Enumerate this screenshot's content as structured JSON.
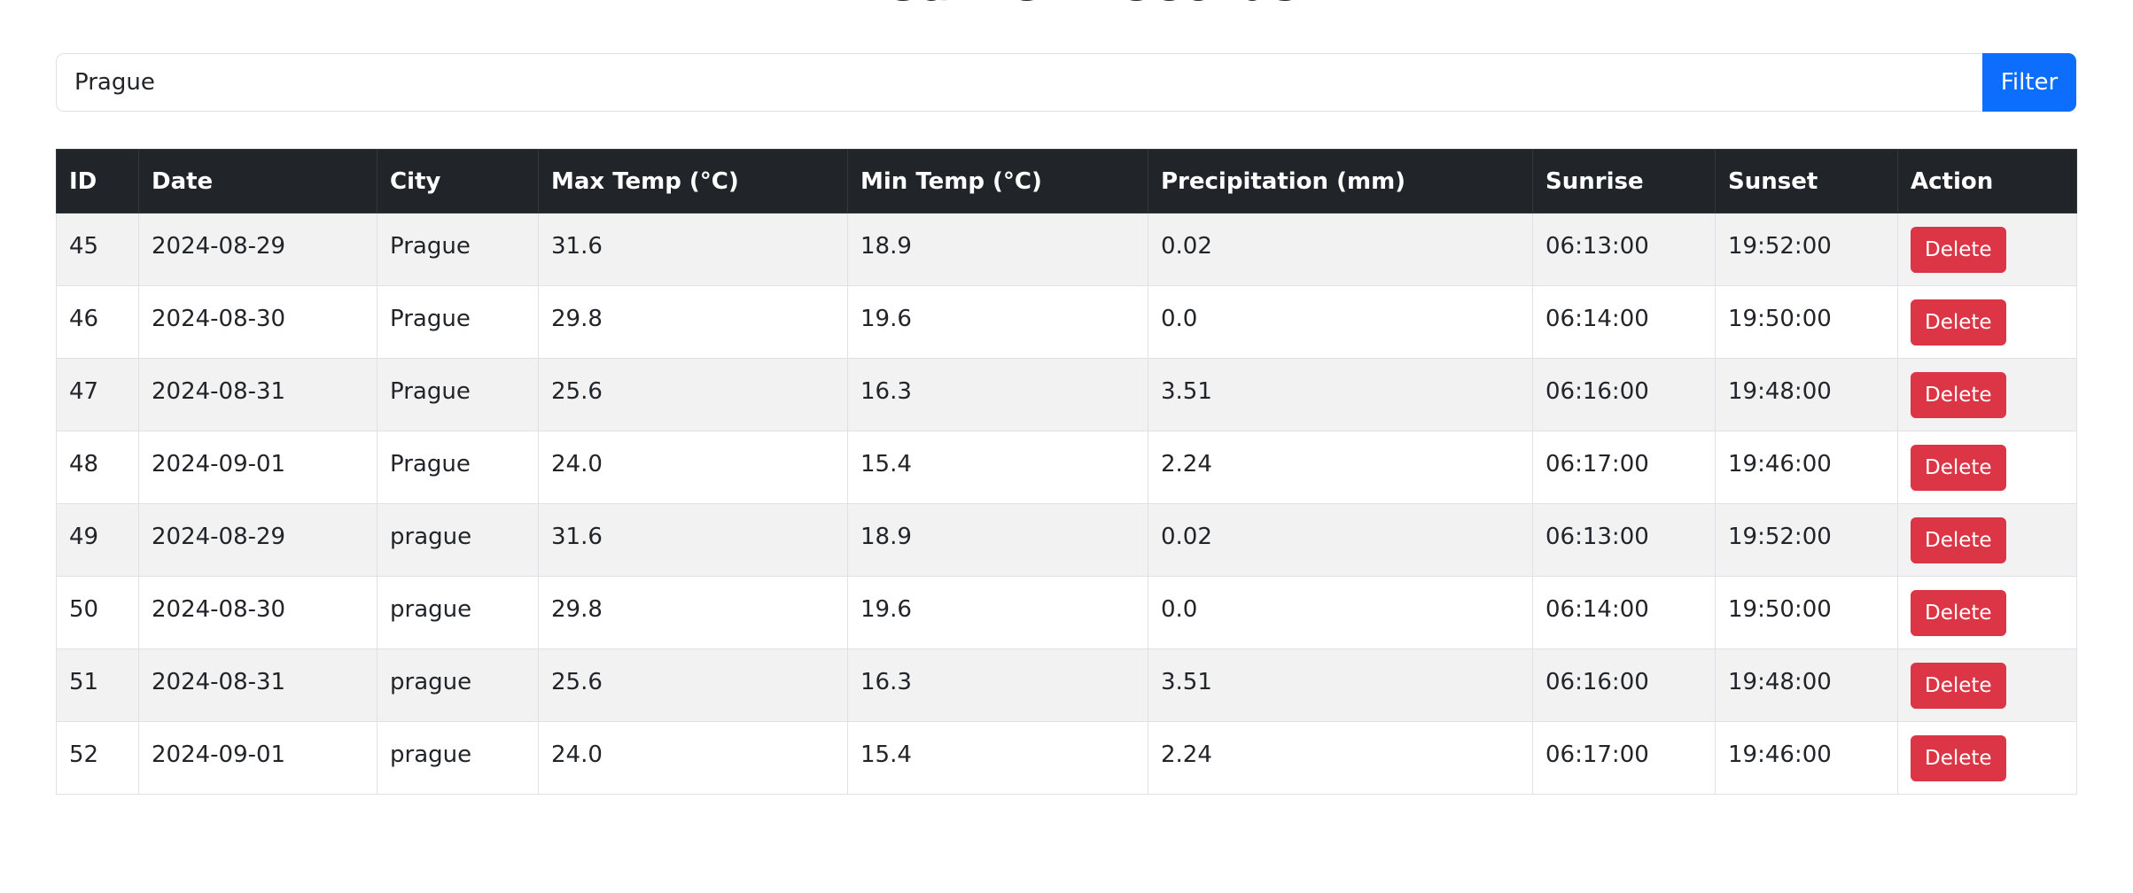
{
  "page": {
    "title": "Weather Records"
  },
  "filter": {
    "value": "Prague",
    "button_label": "Filter"
  },
  "table": {
    "headers": [
      "ID",
      "Date",
      "City",
      "Max Temp (°C)",
      "Min Temp (°C)",
      "Precipitation (mm)",
      "Sunrise",
      "Sunset",
      "Action"
    ],
    "action_label": "Delete",
    "rows": [
      [
        "45",
        "2024-08-29",
        "Prague",
        "31.6",
        "18.9",
        "0.02",
        "06:13:00",
        "19:52:00"
      ],
      [
        "46",
        "2024-08-30",
        "Prague",
        "29.8",
        "19.6",
        "0.0",
        "06:14:00",
        "19:50:00"
      ],
      [
        "47",
        "2024-08-31",
        "Prague",
        "25.6",
        "16.3",
        "3.51",
        "06:16:00",
        "19:48:00"
      ],
      [
        "48",
        "2024-09-01",
        "Prague",
        "24.0",
        "15.4",
        "2.24",
        "06:17:00",
        "19:46:00"
      ],
      [
        "49",
        "2024-08-29",
        "prague",
        "31.6",
        "18.9",
        "0.02",
        "06:13:00",
        "19:52:00"
      ],
      [
        "50",
        "2024-08-30",
        "prague",
        "29.8",
        "19.6",
        "0.0",
        "06:14:00",
        "19:50:00"
      ],
      [
        "51",
        "2024-08-31",
        "prague",
        "25.6",
        "16.3",
        "3.51",
        "06:16:00",
        "19:48:00"
      ],
      [
        "52",
        "2024-09-01",
        "prague",
        "24.0",
        "15.4",
        "2.24",
        "06:17:00",
        "19:46:00"
      ]
    ]
  },
  "colors": {
    "primary": "#0d6efd",
    "danger": "#dc3545",
    "header_dark": "#212529",
    "stripe": "#f2f2f2"
  }
}
